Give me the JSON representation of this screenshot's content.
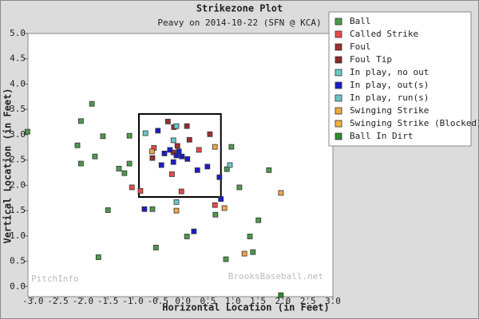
{
  "chart_data": {
    "type": "scatter",
    "title": "Strikezone Plot",
    "subtitle": "Peavy on 2014-10-22 (SFN @ KCA)",
    "x_label": "Horizontal Location (in Feet)",
    "y_label": "Vertical Location (in Feet)",
    "watermarks": [
      "PitchInfo",
      "BrooksBaseball.net"
    ],
    "legend": "upper right",
    "xlim": [
      -3.1,
      3.0
    ],
    "ylim": [
      -0.2,
      5.0
    ],
    "xticks": [
      {
        "value": -3,
        "label": "-3.0"
      },
      {
        "value": -2.5,
        "label": "-2.5"
      },
      {
        "value": -2,
        "label": "-2.0"
      },
      {
        "value": -1.5,
        "label": "-1.5"
      },
      {
        "value": -1,
        "label": "-1.0"
      },
      {
        "value": -0.5,
        "label": "-0.5"
      },
      {
        "value": 0,
        "label": "0.0"
      },
      0.5,
      {
        "value": 1,
        "label": "1.0"
      },
      1.5,
      {
        "value": 2,
        "label": "2.0"
      },
      2.5,
      {
        "value": 3,
        "label": "3.0"
      }
    ],
    "yticks": [
      {
        "value": 0,
        "label": "0.0"
      },
      0.5,
      {
        "value": 1,
        "label": "1.0"
      },
      1.5,
      {
        "value": 2,
        "label": "2.0"
      },
      2.5,
      {
        "value": 3,
        "label": "3.0"
      },
      3.5,
      {
        "value": 4,
        "label": "4.0"
      },
      4.5,
      {
        "value": 5,
        "label": "5.0"
      }
    ],
    "strike_zone": {
      "x": [
        -0.88,
        0.76
      ],
      "y": [
        1.77,
        3.41
      ]
    },
    "series": [
      {
        "name": "Ball",
        "color": "#4e9a4e",
        "x": [
          -3.11,
          -1.82,
          -2.04,
          -1.6,
          -2.11,
          -1.76,
          -2.04,
          -1.28,
          -1.17,
          -1.07,
          -1.07,
          -1.5,
          -1.69,
          -0.61,
          -0.54,
          0.08,
          0.65,
          0.86,
          0.97,
          0.88,
          1.13,
          1.72,
          1.51,
          1.34,
          1.4
        ],
        "y": [
          3.06,
          3.61,
          3.27,
          2.97,
          2.79,
          2.57,
          2.43,
          2.33,
          2.24,
          2.43,
          2.98,
          1.51,
          0.58,
          1.53,
          0.77,
          0.99,
          1.42,
          0.54,
          2.76,
          2.32,
          1.96,
          2.3,
          1.31,
          0.99,
          0.68
        ]
      },
      {
        "name": "Called Strike",
        "color": "#e84a4a",
        "x": [
          -1.02,
          -0.85,
          -0.58,
          -0.03,
          -0.22,
          0.32,
          0.64
        ],
        "y": [
          1.96,
          1.89,
          2.74,
          1.88,
          2.22,
          2.7,
          1.61
        ]
      },
      {
        "name": "Foul",
        "color": "#9c2f2f",
        "x": [
          -0.3,
          0.08,
          -0.18,
          0.54,
          -0.61,
          -0.11,
          -0.19,
          0.13
        ],
        "y": [
          3.26,
          3.17,
          3.15,
          3.01,
          2.54,
          2.78,
          2.65,
          2.9
        ]
      },
      {
        "name": "Foul Tip",
        "color": "#8b2a2a",
        "x": [],
        "y": []
      },
      {
        "name": "In play, no out",
        "color": "#6cc8c8",
        "x": [
          -0.75,
          -0.19,
          -0.13,
          0.94,
          -0.13
        ],
        "y": [
          3.03,
          2.89,
          1.67,
          2.4,
          3.17
        ]
      },
      {
        "name": "In play, out(s)",
        "color": "#1c1cc8",
        "x": [
          -0.77,
          -0.5,
          -0.37,
          -0.26,
          -0.08,
          -0.13,
          -0.02,
          0.09,
          -0.43,
          -0.19,
          0.29,
          0.49,
          0.73,
          0.76,
          0.22
        ],
        "y": [
          1.53,
          3.08,
          2.63,
          2.7,
          2.67,
          2.59,
          2.57,
          2.52,
          2.4,
          2.46,
          2.3,
          2.37,
          2.16,
          1.73,
          1.09
        ]
      },
      {
        "name": "In play, run(s)",
        "color": "#70c4c4",
        "x": [],
        "y": []
      },
      {
        "name": "Swinging Strike",
        "color": "#f0a848",
        "x": [
          1.96,
          1.23,
          0.83,
          -0.13,
          0.64,
          -0.62
        ],
        "y": [
          1.85,
          0.65,
          1.55,
          1.5,
          2.76,
          2.67
        ]
      },
      {
        "name": "Swinging Strike (Blocked)",
        "color": "#f0b440",
        "x": [],
        "y": []
      },
      {
        "name": "Ball In Dirt",
        "color": "#2e8b2e",
        "x": [
          1.96
        ],
        "y": [
          -0.17
        ]
      }
    ]
  }
}
